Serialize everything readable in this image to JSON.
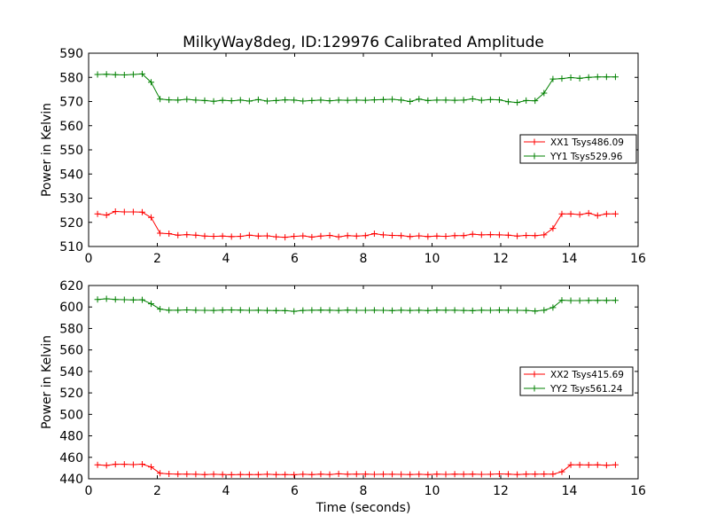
{
  "chart_data": [
    {
      "type": "line",
      "title": "MilkyWay8deg, ID:129976 Calibrated Amplitude",
      "xlabel": "",
      "ylabel": "Power in Kelvin",
      "xlim": [
        0,
        16
      ],
      "ylim": [
        510,
        590
      ],
      "xticks": [
        "0",
        "2",
        "4",
        "6",
        "8",
        "10",
        "12",
        "14",
        "16"
      ],
      "yticks": [
        "510",
        "520",
        "530",
        "540",
        "550",
        "560",
        "570",
        "580",
        "590"
      ],
      "grid": false,
      "legend_position": "center-right",
      "x": [
        0.26,
        0.52,
        0.78,
        1.04,
        1.3,
        1.56,
        1.82,
        2.08,
        2.34,
        2.6,
        2.86,
        3.12,
        3.38,
        3.64,
        3.9,
        4.16,
        4.42,
        4.68,
        4.94,
        5.2,
        5.46,
        5.72,
        5.98,
        6.24,
        6.5,
        6.76,
        7.02,
        7.28,
        7.54,
        7.8,
        8.06,
        8.32,
        8.58,
        8.84,
        9.1,
        9.36,
        9.62,
        9.88,
        10.14,
        10.4,
        10.66,
        10.92,
        11.18,
        11.44,
        11.7,
        11.96,
        12.22,
        12.48,
        12.74,
        13.0,
        13.26,
        13.52,
        13.78,
        14.04,
        14.3,
        14.56,
        14.82,
        15.08,
        15.34
      ],
      "series": [
        {
          "name": "XX1 Tsys486.09",
          "color": "#ff0000",
          "values": [
            523.5,
            523.0,
            524.5,
            524.3,
            524.3,
            524.2,
            522.0,
            515.5,
            515.3,
            514.7,
            514.9,
            514.7,
            514.3,
            514.2,
            514.3,
            514.1,
            514.2,
            514.7,
            514.3,
            514.4,
            514.0,
            513.8,
            514.2,
            514.4,
            513.9,
            514.3,
            514.6,
            514.0,
            514.5,
            514.3,
            514.5,
            515.3,
            514.8,
            514.6,
            514.5,
            514.1,
            514.4,
            514.1,
            514.3,
            514.2,
            514.5,
            514.5,
            515.1,
            514.8,
            514.9,
            514.8,
            514.7,
            514.3,
            514.6,
            514.5,
            514.8,
            517.5,
            523.5,
            523.5,
            523.2,
            523.8,
            522.8,
            523.5,
            523.5
          ]
        },
        {
          "name": "YY1 Tsys529.96",
          "color": "#008000",
          "values": [
            581.2,
            581.3,
            581.1,
            581.0,
            581.2,
            581.4,
            578.0,
            571.0,
            570.7,
            570.6,
            570.9,
            570.6,
            570.4,
            570.1,
            570.5,
            570.3,
            570.6,
            570.2,
            570.8,
            570.2,
            570.4,
            570.7,
            570.6,
            570.2,
            570.4,
            570.6,
            570.3,
            570.6,
            570.5,
            570.6,
            570.5,
            570.7,
            570.8,
            570.9,
            570.6,
            570.0,
            571.0,
            570.4,
            570.6,
            570.6,
            570.5,
            570.6,
            571.1,
            570.5,
            570.8,
            570.7,
            569.9,
            569.6,
            570.4,
            570.3,
            573.5,
            579.3,
            579.5,
            579.9,
            579.6,
            580.0,
            580.2,
            580.2,
            580.2
          ]
        }
      ]
    },
    {
      "type": "line",
      "title": "",
      "xlabel": "Time (seconds)",
      "ylabel": "Power in Kelvin",
      "xlim": [
        0,
        16
      ],
      "ylim": [
        440,
        620
      ],
      "xticks": [
        "0",
        "2",
        "4",
        "6",
        "8",
        "10",
        "12",
        "14",
        "16"
      ],
      "yticks": [
        "440",
        "460",
        "480",
        "500",
        "520",
        "540",
        "560",
        "580",
        "600",
        "620"
      ],
      "grid": false,
      "legend_position": "center-right",
      "x": [
        0.26,
        0.52,
        0.78,
        1.04,
        1.3,
        1.56,
        1.82,
        2.08,
        2.34,
        2.6,
        2.86,
        3.12,
        3.38,
        3.64,
        3.9,
        4.16,
        4.42,
        4.68,
        4.94,
        5.2,
        5.46,
        5.72,
        5.98,
        6.24,
        6.5,
        6.76,
        7.02,
        7.28,
        7.54,
        7.8,
        8.06,
        8.32,
        8.58,
        8.84,
        9.1,
        9.36,
        9.62,
        9.88,
        10.14,
        10.4,
        10.66,
        10.92,
        11.18,
        11.44,
        11.7,
        11.96,
        12.22,
        12.48,
        12.74,
        13.0,
        13.26,
        13.52,
        13.78,
        14.04,
        14.3,
        14.56,
        14.82,
        15.08,
        15.34
      ],
      "series": [
        {
          "name": "XX2 Tsys415.69",
          "color": "#ff0000",
          "values": [
            453.0,
            452.5,
            453.5,
            453.5,
            453.2,
            453.6,
            451.0,
            445.2,
            444.5,
            444.3,
            444.3,
            444.2,
            443.9,
            444.2,
            444.0,
            443.8,
            444.0,
            443.9,
            443.9,
            444.2,
            443.9,
            443.9,
            443.8,
            444.2,
            443.9,
            444.3,
            444.0,
            444.6,
            444.2,
            444.3,
            444.3,
            444.1,
            444.2,
            444.2,
            444.1,
            444.0,
            444.2,
            443.9,
            444.3,
            444.1,
            444.3,
            444.2,
            444.3,
            444.1,
            444.2,
            444.5,
            444.3,
            444.0,
            444.3,
            444.3,
            444.4,
            444.3,
            446.5,
            453.0,
            453.0,
            452.9,
            453.0,
            452.6,
            453.0
          ]
        },
        {
          "name": "YY2 Tsys561.24",
          "color": "#008000",
          "values": [
            607.0,
            607.6,
            607.0,
            606.8,
            606.6,
            606.7,
            603.0,
            598.0,
            597.0,
            597.0,
            597.3,
            597.0,
            596.9,
            596.8,
            597.1,
            597.2,
            597.1,
            596.9,
            597.0,
            596.8,
            596.7,
            596.6,
            596.0,
            596.8,
            597.0,
            597.1,
            597.0,
            596.8,
            597.1,
            596.9,
            596.9,
            597.0,
            596.9,
            596.7,
            597.0,
            596.8,
            597.0,
            596.7,
            597.1,
            597.0,
            597.0,
            596.8,
            596.6,
            597.0,
            596.9,
            597.1,
            597.0,
            596.9,
            596.8,
            596.2,
            597.0,
            599.5,
            606.3,
            606.0,
            606.0,
            606.1,
            606.1,
            606.1,
            606.2
          ]
        }
      ]
    }
  ]
}
